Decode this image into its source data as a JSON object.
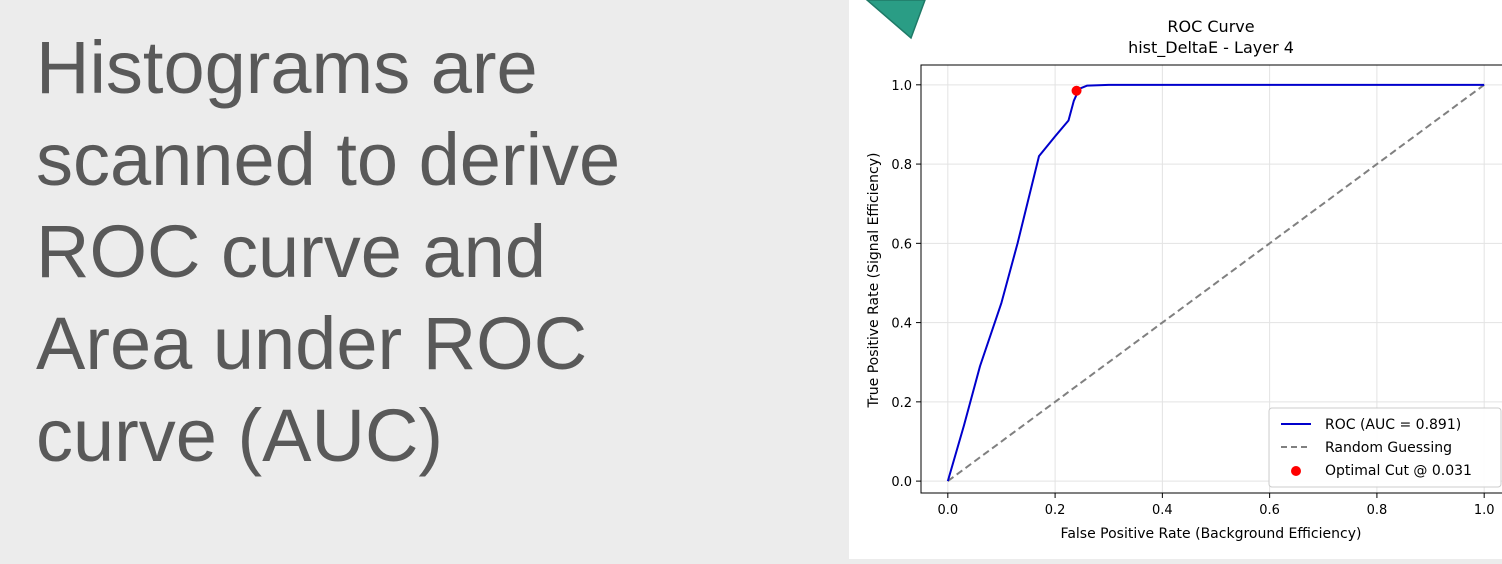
{
  "slide": {
    "lines": [
      "Histograms are",
      "scanned to derive",
      "ROC curve and",
      "Area under ROC",
      "curve (AUC)"
    ]
  },
  "colors": {
    "background": "#ececec",
    "text": "#595959",
    "arrow_fill": "#2a9d85",
    "roc_line": "#0000cc",
    "random_line": "#808080",
    "optimal_point": "#ff0000"
  },
  "chart_data": {
    "type": "line",
    "title": "ROC Curve",
    "subtitle": "hist_DeltaE - Layer 4",
    "xlabel": "False Positive Rate (Background Efficiency)",
    "ylabel": "True Positive Rate (Signal Efficiency)",
    "xlim": [
      -0.05,
      1.05
    ],
    "ylim": [
      -0.03,
      1.05
    ],
    "xticks": [
      "0.0",
      "0.2",
      "0.4",
      "0.6",
      "0.8",
      "1.0"
    ],
    "yticks": [
      "0.0",
      "0.2",
      "0.4",
      "0.6",
      "0.8",
      "1.0"
    ],
    "grid": true,
    "legend_position": "lower-right",
    "series": [
      {
        "name": "ROC (AUC = 0.891)",
        "x": [
          0.0,
          0.03,
          0.06,
          0.1,
          0.13,
          0.17,
          0.2,
          0.225,
          0.235,
          0.245,
          0.26,
          0.3,
          0.5,
          0.8,
          1.0
        ],
        "y": [
          0.0,
          0.14,
          0.29,
          0.45,
          0.6,
          0.82,
          0.87,
          0.91,
          0.96,
          0.99,
          0.998,
          1.0,
          1.0,
          1.0,
          1.0
        ]
      },
      {
        "name": "Random Guessing",
        "x": [
          0.0,
          1.0
        ],
        "y": [
          0.0,
          1.0
        ]
      },
      {
        "name": "Optimal Cut @ 0.031",
        "x": [
          0.24
        ],
        "y": [
          0.985
        ]
      }
    ]
  }
}
